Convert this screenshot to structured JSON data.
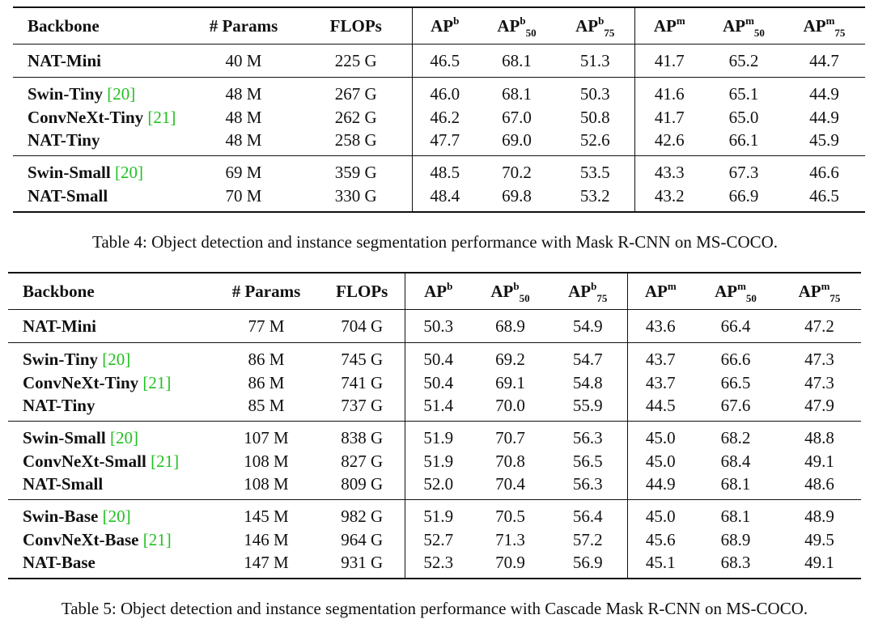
{
  "table4": {
    "headers": {
      "backbone": "Backbone",
      "params": "# Params",
      "flops": "FLOPs",
      "ap": "AP",
      "b": "b",
      "m": "m",
      "s50": "50",
      "s75": "75"
    },
    "groups": [
      [
        {
          "name": "NAT-Mini",
          "cite": "",
          "params": "40 M",
          "flops": "225 G",
          "apb": "46.5",
          "apb50": "68.1",
          "apb75": "51.3",
          "apm": "41.7",
          "apm50": "65.2",
          "apm75": "44.7"
        }
      ],
      [
        {
          "name": "Swin-Tiny",
          "cite": "20",
          "params": "48 M",
          "flops": "267 G",
          "apb": "46.0",
          "apb50": "68.1",
          "apb75": "50.3",
          "apm": "41.6",
          "apm50": "65.1",
          "apm75": "44.9"
        },
        {
          "name": "ConvNeXt-Tiny",
          "cite": "21",
          "params": "48 M",
          "flops": "262 G",
          "apb": "46.2",
          "apb50": "67.0",
          "apb75": "50.8",
          "apm": "41.7",
          "apm50": "65.0",
          "apm75": "44.9"
        },
        {
          "name": "NAT-Tiny",
          "cite": "",
          "params": "48 M",
          "flops": "258 G",
          "apb": "47.7",
          "apb50": "69.0",
          "apb75": "52.6",
          "apm": "42.6",
          "apm50": "66.1",
          "apm75": "45.9"
        }
      ],
      [
        {
          "name": "Swin-Small",
          "cite": "20",
          "params": "69 M",
          "flops": "359 G",
          "apb": "48.5",
          "apb50": "70.2",
          "apb75": "53.5",
          "apm": "43.3",
          "apm50": "67.3",
          "apm75": "46.6"
        },
        {
          "name": "NAT-Small",
          "cite": "",
          "params": "70 M",
          "flops": "330 G",
          "apb": "48.4",
          "apb50": "69.8",
          "apb75": "53.2",
          "apm": "43.2",
          "apm50": "66.9",
          "apm75": "46.5"
        }
      ]
    ],
    "caption": "Table 4: Object detection and instance segmentation performance with Mask R-CNN on MS-COCO."
  },
  "table5": {
    "headers": {
      "backbone": "Backbone",
      "params": "# Params",
      "flops": "FLOPs",
      "ap": "AP",
      "b": "b",
      "m": "m",
      "s50": "50",
      "s75": "75"
    },
    "groups": [
      [
        {
          "name": "NAT-Mini",
          "cite": "",
          "params": "77 M",
          "flops": "704 G",
          "apb": "50.3",
          "apb50": "68.9",
          "apb75": "54.9",
          "apm": "43.6",
          "apm50": "66.4",
          "apm75": "47.2"
        }
      ],
      [
        {
          "name": "Swin-Tiny",
          "cite": "20",
          "params": "86 M",
          "flops": "745 G",
          "apb": "50.4",
          "apb50": "69.2",
          "apb75": "54.7",
          "apm": "43.7",
          "apm50": "66.6",
          "apm75": "47.3"
        },
        {
          "name": "ConvNeXt-Tiny",
          "cite": "21",
          "params": "86 M",
          "flops": "741 G",
          "apb": "50.4",
          "apb50": "69.1",
          "apb75": "54.8",
          "apm": "43.7",
          "apm50": "66.5",
          "apm75": "47.3"
        },
        {
          "name": "NAT-Tiny",
          "cite": "",
          "params": "85 M",
          "flops": "737 G",
          "apb": "51.4",
          "apb50": "70.0",
          "apb75": "55.9",
          "apm": "44.5",
          "apm50": "67.6",
          "apm75": "47.9"
        }
      ],
      [
        {
          "name": "Swin-Small",
          "cite": "20",
          "params": "107 M",
          "flops": "838 G",
          "apb": "51.9",
          "apb50": "70.7",
          "apb75": "56.3",
          "apm": "45.0",
          "apm50": "68.2",
          "apm75": "48.8"
        },
        {
          "name": "ConvNeXt-Small",
          "cite": "21",
          "params": "108 M",
          "flops": "827 G",
          "apb": "51.9",
          "apb50": "70.8",
          "apb75": "56.5",
          "apm": "45.0",
          "apm50": "68.4",
          "apm75": "49.1"
        },
        {
          "name": "NAT-Small",
          "cite": "",
          "params": "108 M",
          "flops": "809 G",
          "apb": "52.0",
          "apb50": "70.4",
          "apb75": "56.3",
          "apm": "44.9",
          "apm50": "68.1",
          "apm75": "48.6"
        }
      ],
      [
        {
          "name": "Swin-Base",
          "cite": "20",
          "params": "145 M",
          "flops": "982 G",
          "apb": "51.9",
          "apb50": "70.5",
          "apb75": "56.4",
          "apm": "45.0",
          "apm50": "68.1",
          "apm75": "48.9"
        },
        {
          "name": "ConvNeXt-Base",
          "cite": "21",
          "params": "146 M",
          "flops": "964 G",
          "apb": "52.7",
          "apb50": "71.3",
          "apb75": "57.2",
          "apm": "45.6",
          "apm50": "68.9",
          "apm75": "49.5"
        },
        {
          "name": "NAT-Base",
          "cite": "",
          "params": "147 M",
          "flops": "931 G",
          "apb": "52.3",
          "apb50": "70.9",
          "apb75": "56.9",
          "apm": "45.1",
          "apm50": "68.3",
          "apm75": "49.1"
        }
      ]
    ],
    "caption": "Table 5: Object detection and instance segmentation performance with Cascade Mask R-CNN on MS-COCO."
  }
}
